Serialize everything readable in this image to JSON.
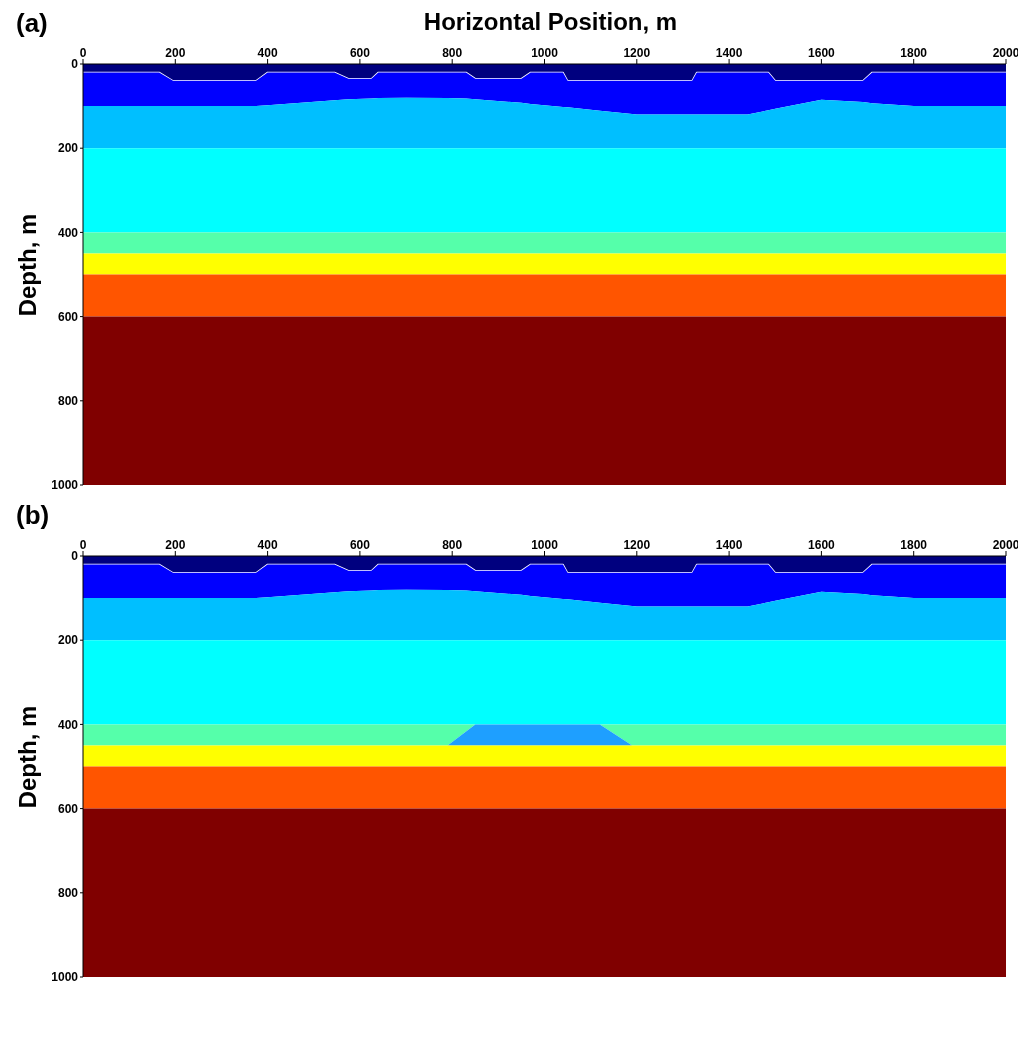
{
  "chart_data": [
    {
      "type": "area",
      "title": "(a)",
      "xlabel": "Horizontal Position, m",
      "ylabel": "Depth, m",
      "stacked": true,
      "x": [
        0,
        165,
        195,
        375,
        400,
        545,
        575,
        625,
        640,
        700,
        790,
        830,
        850,
        950,
        970,
        1040,
        1050,
        1120,
        1190,
        1200,
        1320,
        1330,
        1440,
        1485,
        1500,
        1600,
        1690,
        1710,
        1800,
        2000
      ],
      "xlim": [
        0,
        2000
      ],
      "xticks": [
        0,
        200,
        400,
        600,
        800,
        1000,
        1200,
        1400,
        1600,
        1800,
        2000
      ],
      "ylim": [
        1000,
        0
      ],
      "yticks": [
        0,
        200,
        400,
        600,
        800,
        1000
      ],
      "series": [
        {
          "color": "#00007f",
          "values": [
            20,
            20,
            40,
            40,
            20,
            20,
            35,
            35,
            20,
            20,
            20,
            20,
            35,
            35,
            20,
            20,
            40,
            40,
            40,
            40,
            40,
            20,
            20,
            20,
            40,
            40,
            40,
            20,
            20,
            20
          ]
        },
        {
          "color": "#0000ff",
          "values": [
            80,
            80,
            60,
            60,
            78,
            66,
            49,
            47,
            61,
            60,
            61,
            62,
            49,
            57,
            75,
            82,
            63,
            71,
            79,
            80,
            80,
            100,
            100,
            90,
            66,
            45,
            50,
            73,
            80,
            80
          ]
        },
        {
          "color": "#00bfff",
          "values": [
            100,
            100,
            100,
            100,
            102,
            114,
            116,
            118,
            119,
            120,
            119,
            118,
            116,
            108,
            105,
            98,
            97,
            89,
            81,
            80,
            80,
            80,
            80,
            90,
            94,
            115,
            110,
            107,
            100,
            100
          ]
        },
        {
          "color": "#00ffff",
          "values": [
            200,
            200,
            200,
            200,
            200,
            200,
            200,
            200,
            200,
            200,
            200,
            200,
            200,
            200,
            200,
            200,
            200,
            200,
            200,
            200,
            200,
            200,
            200,
            200,
            200,
            200,
            200,
            200,
            200,
            200
          ]
        },
        {
          "color": "#55ffaa",
          "values": [
            50,
            50,
            50,
            50,
            50,
            50,
            50,
            50,
            50,
            50,
            50,
            50,
            50,
            50,
            50,
            50,
            50,
            50,
            50,
            50,
            50,
            50,
            50,
            50,
            50,
            50,
            50,
            50,
            50,
            50
          ]
        },
        {
          "color": "#ffff00",
          "values": [
            50,
            50,
            50,
            50,
            50,
            50,
            50,
            50,
            50,
            50,
            50,
            50,
            50,
            50,
            50,
            50,
            50,
            50,
            50,
            50,
            50,
            50,
            50,
            50,
            50,
            50,
            50,
            50,
            50,
            50
          ]
        },
        {
          "color": "#ff5500",
          "values": [
            100,
            100,
            100,
            100,
            100,
            100,
            100,
            100,
            100,
            100,
            100,
            100,
            100,
            100,
            100,
            100,
            100,
            100,
            100,
            100,
            100,
            100,
            100,
            100,
            100,
            100,
            100,
            100,
            100,
            100
          ]
        },
        {
          "color": "#800000",
          "values": [
            400,
            400,
            400,
            400,
            400,
            400,
            400,
            400,
            400,
            400,
            400,
            400,
            400,
            400,
            400,
            400,
            400,
            400,
            400,
            400,
            400,
            400,
            400,
            400,
            400,
            400,
            400,
            400,
            400,
            400
          ]
        }
      ]
    },
    {
      "type": "area",
      "title": "(b)",
      "ylabel": "Depth, m",
      "stacked": true,
      "x": [
        0,
        165,
        195,
        375,
        400,
        545,
        575,
        625,
        640,
        700,
        790,
        830,
        850,
        950,
        970,
        1040,
        1050,
        1120,
        1190,
        1200,
        1320,
        1330,
        1440,
        1485,
        1500,
        1600,
        1690,
        1710,
        1800,
        2000
      ],
      "xlim": [
        0,
        2000
      ],
      "xticks": [
        0,
        200,
        400,
        600,
        800,
        1000,
        1200,
        1400,
        1600,
        1800,
        2000
      ],
      "ylim": [
        1000,
        0
      ],
      "yticks": [
        0,
        200,
        400,
        600,
        800,
        1000
      ],
      "series": [
        {
          "color": "#00007f",
          "values": [
            20,
            20,
            40,
            40,
            20,
            20,
            35,
            35,
            20,
            20,
            20,
            20,
            35,
            35,
            20,
            20,
            40,
            40,
            40,
            40,
            40,
            20,
            20,
            20,
            40,
            40,
            40,
            20,
            20,
            20
          ]
        },
        {
          "color": "#0000ff",
          "values": [
            80,
            80,
            60,
            60,
            78,
            66,
            49,
            47,
            61,
            60,
            61,
            62,
            49,
            57,
            75,
            82,
            63,
            71,
            79,
            80,
            80,
            100,
            100,
            90,
            66,
            45,
            50,
            73,
            80,
            80
          ]
        },
        {
          "color": "#00bfff",
          "values": [
            100,
            100,
            100,
            100,
            102,
            114,
            116,
            118,
            119,
            120,
            119,
            118,
            116,
            108,
            105,
            98,
            97,
            89,
            81,
            80,
            80,
            80,
            80,
            90,
            94,
            115,
            110,
            107,
            100,
            100
          ]
        },
        {
          "color": "#00ffff",
          "values": [
            200,
            200,
            200,
            200,
            200,
            200,
            200,
            200,
            200,
            200,
            200,
            200,
            200,
            200,
            200,
            200,
            200,
            200,
            200,
            200,
            200,
            200,
            200,
            200,
            200,
            200,
            200,
            200,
            200,
            200
          ]
        },
        {
          "color": "#55ffaa",
          "values": [
            50,
            50,
            50,
            50,
            50,
            50,
            50,
            50,
            50,
            50,
            50,
            17,
            0,
            0,
            0,
            0,
            0,
            0,
            50,
            50,
            50,
            50,
            50,
            50,
            50,
            50,
            50,
            50,
            50,
            50
          ]
        },
        {
          "color": "#1e9fff",
          "values": [
            null,
            null,
            null,
            null,
            null,
            null,
            null,
            null,
            null,
            null,
            0,
            33,
            50,
            50,
            50,
            50,
            50,
            50,
            0,
            null,
            null,
            null,
            null,
            null,
            null,
            null,
            null,
            null,
            null,
            null
          ]
        },
        {
          "color": "#ffff00",
          "values": [
            50,
            50,
            50,
            50,
            50,
            50,
            50,
            50,
            50,
            50,
            50,
            50,
            50,
            50,
            50,
            50,
            50,
            50,
            50,
            50,
            50,
            50,
            50,
            50,
            50,
            50,
            50,
            50,
            50,
            50
          ]
        },
        {
          "color": "#ff5500",
          "values": [
            100,
            100,
            100,
            100,
            100,
            100,
            100,
            100,
            100,
            100,
            100,
            100,
            100,
            100,
            100,
            100,
            100,
            100,
            100,
            100,
            100,
            100,
            100,
            100,
            100,
            100,
            100,
            100,
            100,
            100
          ]
        },
        {
          "color": "#800000",
          "values": [
            400,
            400,
            400,
            400,
            400,
            400,
            400,
            400,
            400,
            400,
            400,
            400,
            400,
            400,
            400,
            400,
            400,
            400,
            400,
            400,
            400,
            400,
            400,
            400,
            400,
            400,
            400,
            400,
            400,
            400
          ]
        }
      ]
    }
  ]
}
